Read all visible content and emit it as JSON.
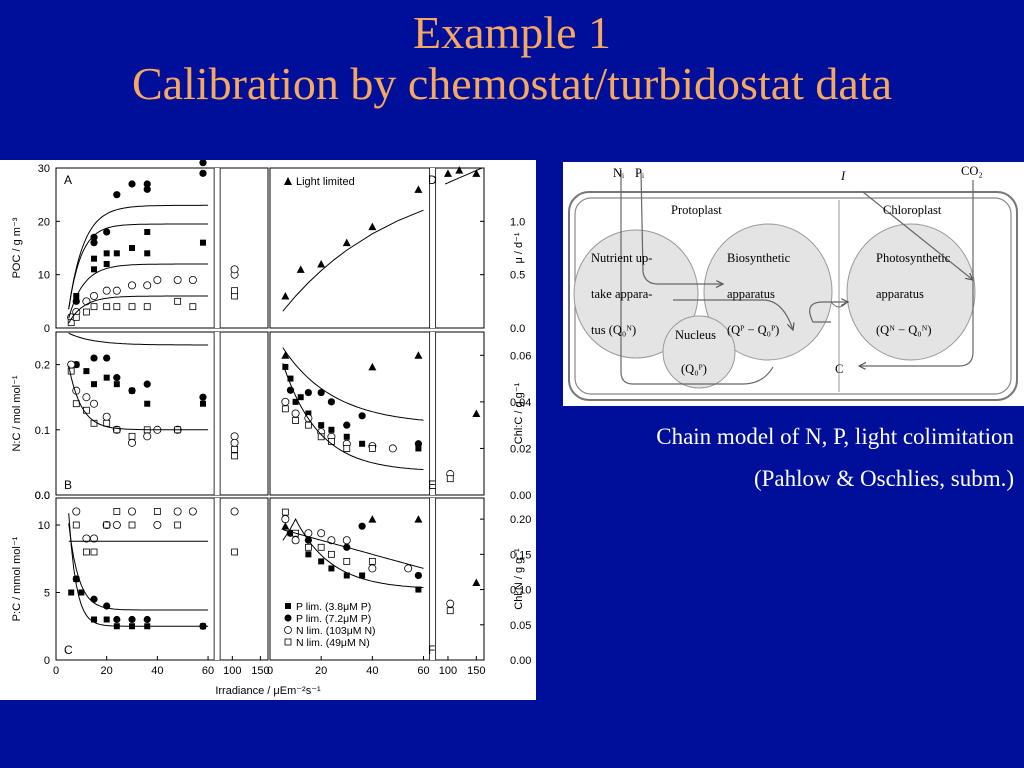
{
  "slide": {
    "title_line1": "Example 1",
    "title_line2": "Calibration by chemostat/turbidostat data",
    "caption_line1": "Chain model of N, P, light colimitation",
    "caption_line2": "(Pahlow & Oschlies, subm.)",
    "colors": {
      "background": "#000f99",
      "title": "#f5a860",
      "caption": "#ffffff"
    }
  },
  "chart_data": [
    {
      "type": "scatter",
      "panel": "A",
      "ylabel": "POC / g m⁻³",
      "ylim": [
        0,
        30
      ],
      "yticks": [
        "0",
        "10",
        "20",
        "30"
      ],
      "series": [
        {
          "marker": "filled-square",
          "points": [
            [
              6,
              2
            ],
            [
              8,
              6
            ],
            [
              15,
              11
            ],
            [
              15,
              13
            ],
            [
              20,
              12
            ],
            [
              20,
              14
            ],
            [
              24,
              14
            ],
            [
              30,
              15
            ],
            [
              36,
              14
            ],
            [
              36,
              18
            ],
            [
              58,
              16
            ]
          ]
        },
        {
          "marker": "filled-circle",
          "points": [
            [
              6,
              2
            ],
            [
              8,
              5
            ],
            [
              15,
              16
            ],
            [
              15,
              17
            ],
            [
              20,
              18
            ],
            [
              24,
              25
            ],
            [
              30,
              27
            ],
            [
              36,
              26
            ],
            [
              36,
              27
            ],
            [
              58,
              29
            ],
            [
              58,
              31
            ]
          ]
        },
        {
          "marker": "open-circle",
          "points": [
            [
              6,
              2
            ],
            [
              8,
              3
            ],
            [
              12,
              5
            ],
            [
              15,
              6
            ],
            [
              20,
              7
            ],
            [
              24,
              7
            ],
            [
              30,
              8
            ],
            [
              36,
              8
            ],
            [
              40,
              9
            ],
            [
              48,
              9
            ],
            [
              54,
              9
            ],
            [
              104,
              10
            ],
            [
              104,
              11
            ]
          ]
        },
        {
          "marker": "open-square",
          "points": [
            [
              6,
              1
            ],
            [
              8,
              2
            ],
            [
              12,
              3
            ],
            [
              15,
              4
            ],
            [
              20,
              4
            ],
            [
              24,
              4
            ],
            [
              30,
              4
            ],
            [
              36,
              4
            ],
            [
              48,
              5
            ],
            [
              54,
              4
            ],
            [
              104,
              6
            ],
            [
              104,
              7
            ]
          ]
        }
      ]
    },
    {
      "type": "scatter",
      "panel": "B",
      "ylabel": "N:C / mol mol⁻¹",
      "ylim": [
        0,
        0.25
      ],
      "yticks": [
        "0.0",
        "0.1",
        "0.2"
      ],
      "annotation": "0.0",
      "series": [
        {
          "marker": "filled-square",
          "points": [
            [
              6,
              0.2
            ],
            [
              8,
              0.2
            ],
            [
              12,
              0.19
            ],
            [
              15,
              0.17
            ],
            [
              20,
              0.18
            ],
            [
              24,
              0.17
            ],
            [
              30,
              0.16
            ],
            [
              36,
              0.14
            ],
            [
              58,
              0.14
            ]
          ]
        },
        {
          "marker": "filled-circle",
          "points": [
            [
              6,
              0.2
            ],
            [
              8,
              0.2
            ],
            [
              15,
              0.21
            ],
            [
              20,
              0.21
            ],
            [
              24,
              0.18
            ],
            [
              30,
              0.16
            ],
            [
              36,
              0.17
            ],
            [
              58,
              0.15
            ]
          ]
        },
        {
          "marker": "open-circle",
          "points": [
            [
              6,
              0.2
            ],
            [
              8,
              0.16
            ],
            [
              12,
              0.15
            ],
            [
              15,
              0.14
            ],
            [
              20,
              0.12
            ],
            [
              24,
              0.1
            ],
            [
              30,
              0.08
            ],
            [
              36,
              0.09
            ],
            [
              40,
              0.1
            ],
            [
              48,
              0.1
            ],
            [
              104,
              0.09
            ],
            [
              104,
              0.08
            ]
          ]
        },
        {
          "marker": "open-square",
          "points": [
            [
              6,
              0.19
            ],
            [
              8,
              0.14
            ],
            [
              12,
              0.13
            ],
            [
              15,
              0.11
            ],
            [
              20,
              0.11
            ],
            [
              24,
              0.1
            ],
            [
              30,
              0.09
            ],
            [
              36,
              0.1
            ],
            [
              48,
              0.1
            ],
            [
              104,
              0.06
            ],
            [
              104,
              0.07
            ]
          ]
        }
      ]
    },
    {
      "type": "scatter",
      "panel": "C",
      "ylabel": "P:C / mmol mol⁻¹",
      "ylim": [
        0,
        12
      ],
      "yticks": [
        "0",
        "5",
        "10"
      ],
      "xlabel": "Irradiance / μEm⁻²s⁻¹",
      "xticks": [
        "0",
        "20",
        "40",
        "60",
        "100",
        "150"
      ],
      "series": [
        {
          "marker": "filled-square",
          "name": "P lim. (3.8μM P)",
          "points": [
            [
              6,
              5
            ],
            [
              8,
              6
            ],
            [
              10,
              5
            ],
            [
              15,
              3
            ],
            [
              20,
              3
            ],
            [
              24,
              2.5
            ],
            [
              30,
              2.5
            ],
            [
              36,
              2.5
            ],
            [
              58,
              2.5
            ]
          ]
        },
        {
          "marker": "filled-circle",
          "name": "P lim. (7.2μM P)",
          "points": [
            [
              8,
              6
            ],
            [
              15,
              4.5
            ],
            [
              20,
              4
            ],
            [
              24,
              3
            ],
            [
              30,
              3
            ],
            [
              36,
              3
            ],
            [
              58,
              2.5
            ]
          ]
        },
        {
          "marker": "open-circle",
          "name": "N lim. (103μM N)",
          "points": [
            [
              8,
              11
            ],
            [
              12,
              9
            ],
            [
              15,
              9
            ],
            [
              20,
              10
            ],
            [
              24,
              10
            ],
            [
              30,
              11
            ],
            [
              40,
              10
            ],
            [
              48,
              11
            ],
            [
              54,
              11
            ],
            [
              104,
              11
            ]
          ]
        },
        {
          "marker": "open-square",
          "name": "N lim. (49μM N)",
          "points": [
            [
              8,
              10
            ],
            [
              12,
              8
            ],
            [
              15,
              8
            ],
            [
              20,
              10
            ],
            [
              24,
              11
            ],
            [
              30,
              10
            ],
            [
              40,
              11
            ],
            [
              48,
              10
            ],
            [
              104,
              8
            ]
          ]
        }
      ]
    },
    {
      "type": "scatter",
      "panel": "D",
      "ylabel": "μ / d⁻¹",
      "ylim": [
        0,
        1.5
      ],
      "yticks": [
        "0.0",
        "0.5",
        "1.0"
      ],
      "legend": "Light limited",
      "series": [
        {
          "marker": "filled-triangle",
          "name": "Light limited",
          "points": [
            [
              6,
              0.3
            ],
            [
              12,
              0.55
            ],
            [
              20,
              0.6
            ],
            [
              30,
              0.8
            ],
            [
              40,
              0.95
            ],
            [
              58,
              1.3
            ],
            [
              100,
              1.45
            ],
            [
              120,
              1.48
            ],
            [
              150,
              1.45
            ]
          ]
        }
      ]
    },
    {
      "type": "scatter",
      "panel": "E",
      "ylabel": "Chl:C / g g⁻¹",
      "ylim": [
        0,
        0.07
      ],
      "yticks": [
        "0.00",
        "0.02",
        "0.04",
        "0.06"
      ],
      "series": [
        {
          "marker": "filled-square",
          "points": [
            [
              6,
              0.055
            ],
            [
              8,
              0.05
            ],
            [
              10,
              0.04
            ],
            [
              12,
              0.042
            ],
            [
              15,
              0.035
            ],
            [
              20,
              0.03
            ],
            [
              24,
              0.028
            ],
            [
              30,
              0.025
            ],
            [
              36,
              0.022
            ],
            [
              58,
              0.02
            ]
          ]
        },
        {
          "marker": "filled-circle",
          "points": [
            [
              8,
              0.045
            ],
            [
              15,
              0.044
            ],
            [
              20,
              0.044
            ],
            [
              24,
              0.04
            ],
            [
              30,
              0.03
            ],
            [
              36,
              0.034
            ],
            [
              58,
              0.022
            ]
          ]
        },
        {
          "marker": "open-circle",
          "points": [
            [
              6,
              0.04
            ],
            [
              10,
              0.035
            ],
            [
              15,
              0.033
            ],
            [
              20,
              0.027
            ],
            [
              24,
              0.025
            ],
            [
              30,
              0.022
            ],
            [
              40,
              0.021
            ],
            [
              48,
              0.02
            ],
            [
              104,
              0.009
            ]
          ]
        },
        {
          "marker": "open-square",
          "points": [
            [
              6,
              0.037
            ],
            [
              10,
              0.032
            ],
            [
              15,
              0.03
            ],
            [
              20,
              0.025
            ],
            [
              24,
              0.023
            ],
            [
              30,
              0.02
            ],
            [
              40,
              0.02
            ],
            [
              104,
              0.007
            ]
          ]
        },
        {
          "marker": "filled-triangle",
          "points": [
            [
              6,
              0.06
            ],
            [
              40,
              0.055
            ],
            [
              58,
              0.06
            ],
            [
              150,
              0.035
            ]
          ]
        }
      ]
    },
    {
      "type": "scatter",
      "panel": "F",
      "ylabel": "Chl:N / g g⁻¹",
      "ylim": [
        0,
        0.23
      ],
      "yticks": [
        "0.00",
        "0.05",
        "0.10",
        "0.15",
        "0.20"
      ],
      "xticks": [
        "0",
        "20",
        "40",
        "60",
        "100",
        "150"
      ],
      "series": [
        {
          "marker": "filled-square",
          "points": [
            [
              6,
              0.2
            ],
            [
              8,
              0.18
            ],
            [
              10,
              0.17
            ],
            [
              15,
              0.15
            ],
            [
              20,
              0.14
            ],
            [
              24,
              0.13
            ],
            [
              30,
              0.12
            ],
            [
              36,
              0.12
            ],
            [
              58,
              0.1
            ]
          ]
        },
        {
          "marker": "filled-circle",
          "points": [
            [
              8,
              0.18
            ],
            [
              15,
              0.17
            ],
            [
              20,
              0.18
            ],
            [
              24,
              0.17
            ],
            [
              30,
              0.16
            ],
            [
              36,
              0.19
            ],
            [
              58,
              0.12
            ]
          ]
        },
        {
          "marker": "open-circle",
          "points": [
            [
              6,
              0.2
            ],
            [
              10,
              0.17
            ],
            [
              15,
              0.18
            ],
            [
              20,
              0.18
            ],
            [
              24,
              0.17
            ],
            [
              30,
              0.17
            ],
            [
              40,
              0.13
            ],
            [
              54,
              0.13
            ],
            [
              104,
              0.08
            ]
          ]
        },
        {
          "marker": "open-square",
          "points": [
            [
              6,
              0.21
            ],
            [
              10,
              0.18
            ],
            [
              15,
              0.16
            ],
            [
              20,
              0.16
            ],
            [
              24,
              0.15
            ],
            [
              30,
              0.14
            ],
            [
              40,
              0.14
            ],
            [
              104,
              0.07
            ]
          ]
        },
        {
          "marker": "filled-triangle",
          "points": [
            [
              6,
              0.19
            ],
            [
              40,
              0.2
            ],
            [
              58,
              0.2
            ],
            [
              150,
              0.11
            ]
          ]
        }
      ]
    }
  ],
  "diagram": {
    "inputs": [
      "Nᵢ",
      "Pᵢ",
      "I",
      "CO₂"
    ],
    "protoplast_label": "Protoplast",
    "chloroplast_label": "Chloroplast",
    "nutrient_uptake_lines": [
      "Nutrient up-",
      "take appara-",
      "tus (Q₀ᴺ)"
    ],
    "biosynthetic_lines": [
      "Biosynthetic",
      "apparatus",
      "(Qᴾ − Q₀ᴾ)"
    ],
    "photosynthetic_lines": [
      "Photosynthetic",
      "apparatus",
      "(Qᴺ − Q₀ᴺ)"
    ],
    "nucleus_lines": [
      "Nucleus",
      "(Q₀ᴾ)"
    ],
    "carbon_label": "C"
  }
}
